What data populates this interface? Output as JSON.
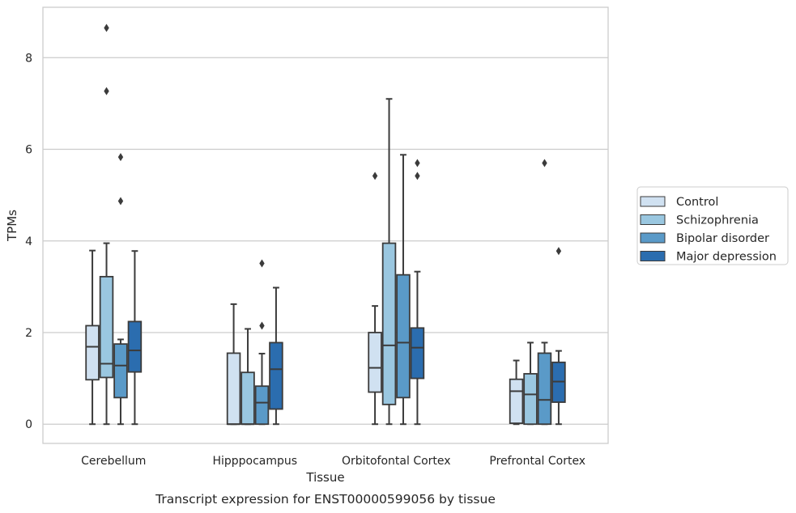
{
  "chart_data": {
    "type": "box",
    "title": "",
    "caption": "Transcript expression for ENST00000599056 by tissue",
    "xlabel": "Tissue",
    "ylabel": "TPMs",
    "ylim": [
      -0.42,
      9.1
    ],
    "yticks": [
      0,
      2,
      4,
      6,
      8
    ],
    "grid": true,
    "legend_position": "right-center",
    "categories": [
      "Cerebellum",
      "Hipppocampus",
      "Orbitofontal Cortex",
      "Prefrontal Cortex"
    ],
    "series": [
      {
        "name": "Control",
        "color": "#d0e1f1",
        "boxes": [
          {
            "whislo": 0.0,
            "q1": 0.97,
            "med": 1.69,
            "q3": 2.15,
            "whishi": 3.79,
            "fliers": []
          },
          {
            "whislo": 0.0,
            "q1": 0.0,
            "med": 0.0,
            "q3": 1.55,
            "whishi": 2.62,
            "fliers": []
          },
          {
            "whislo": 0.0,
            "q1": 0.7,
            "med": 1.23,
            "q3": 2.0,
            "whishi": 2.58,
            "fliers": [
              5.42
            ]
          },
          {
            "whislo": 0.0,
            "q1": 0.02,
            "med": 0.72,
            "q3": 0.98,
            "whishi": 1.39,
            "fliers": []
          }
        ]
      },
      {
        "name": "Schizophrenia",
        "color": "#9ac7e0",
        "boxes": [
          {
            "whislo": 0.0,
            "q1": 1.02,
            "med": 1.32,
            "q3": 3.22,
            "whishi": 3.95,
            "fliers": [
              7.27,
              8.65
            ]
          },
          {
            "whislo": 0.0,
            "q1": 0.0,
            "med": 0.0,
            "q3": 1.13,
            "whishi": 2.08,
            "fliers": []
          },
          {
            "whislo": 0.0,
            "q1": 0.43,
            "med": 1.72,
            "q3": 3.95,
            "whishi": 7.1,
            "fliers": []
          },
          {
            "whislo": 0.0,
            "q1": 0.0,
            "med": 0.65,
            "q3": 1.1,
            "whishi": 1.78,
            "fliers": []
          }
        ]
      },
      {
        "name": "Bipolar disorder",
        "color": "#5a9ac8",
        "boxes": [
          {
            "whislo": 0.0,
            "q1": 0.58,
            "med": 1.28,
            "q3": 1.75,
            "whishi": 1.85,
            "fliers": [
              4.87,
              5.83
            ]
          },
          {
            "whislo": 0.0,
            "q1": 0.0,
            "med": 0.47,
            "q3": 0.83,
            "whishi": 1.54,
            "fliers": [
              2.15,
              3.51
            ]
          },
          {
            "whislo": 0.0,
            "q1": 0.58,
            "med": 1.78,
            "q3": 3.26,
            "whishi": 5.88,
            "fliers": []
          },
          {
            "whislo": 0.0,
            "q1": 0.0,
            "med": 0.53,
            "q3": 1.55,
            "whishi": 1.78,
            "fliers": [
              5.7
            ]
          }
        ]
      },
      {
        "name": "Major depression",
        "color": "#2b6daf",
        "boxes": [
          {
            "whislo": 0.0,
            "q1": 1.14,
            "med": 1.61,
            "q3": 2.24,
            "whishi": 3.78,
            "fliers": []
          },
          {
            "whislo": 0.0,
            "q1": 0.33,
            "med": 1.2,
            "q3": 1.78,
            "whishi": 2.98,
            "fliers": []
          },
          {
            "whislo": 0.0,
            "q1": 1.0,
            "med": 1.67,
            "q3": 2.1,
            "whishi": 3.33,
            "fliers": [
              5.42,
              5.7
            ]
          },
          {
            "whislo": 0.0,
            "q1": 0.48,
            "med": 0.93,
            "q3": 1.35,
            "whishi": 1.6,
            "fliers": [
              3.78
            ]
          }
        ]
      }
    ]
  }
}
